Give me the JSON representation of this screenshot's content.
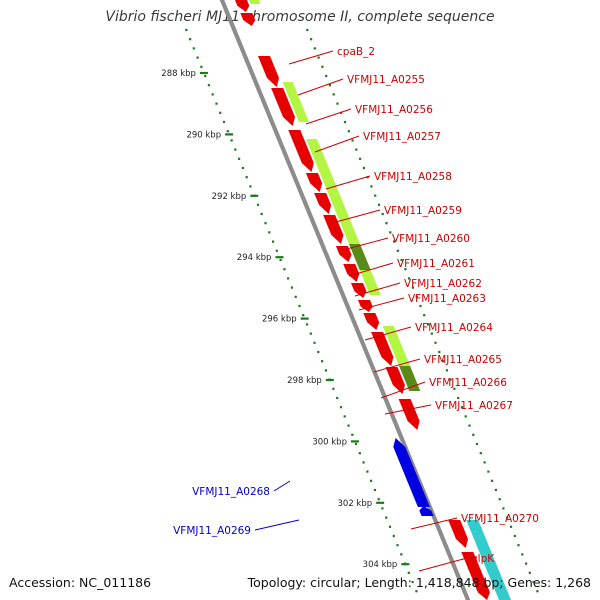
{
  "title": "Vibrio fischeri MJ11 chromosome II, complete sequence",
  "footer": {
    "accession": "Accession: NC_011186",
    "summary": "Topology: circular; Length: 1,418,848 bp; Genes: 1,268"
  },
  "colors": {
    "backbone": "#8c8c8c",
    "tick": "#1a7a1a",
    "gene_forward": "#e60000",
    "gene_reverse": "#0000e0",
    "label_forward": "#cc0000",
    "label_reverse": "#0000cc",
    "feature_lime": "#b3f542",
    "feature_dark": "#5a8a1a",
    "feature_cyan": "#33cccc"
  },
  "ruler": [
    "288 kbp",
    "290 kbp",
    "292 kbp",
    "294 kbp",
    "296 kbp",
    "298 kbp",
    "300 kbp",
    "302 kbp",
    "304 kbp"
  ],
  "forward_genes": [
    "cpaB_2",
    "VFMJ11_A0255",
    "VFMJ11_A0256",
    "VFMJ11_A0257",
    "VFMJ11_A0258",
    "VFMJ11_A0259",
    "VFMJ11_A0260",
    "VFMJ11_A0261",
    "VFMJ11_A0262",
    "VFMJ11_A0263",
    "VFMJ11_A0264",
    "VFMJ11_A0265",
    "VFMJ11_A0266",
    "VFMJ11_A0267",
    "VFMJ11_A0270",
    "glpK"
  ],
  "reverse_genes": [
    "VFMJ11_A0268",
    "VFMJ11_A0269"
  ]
}
